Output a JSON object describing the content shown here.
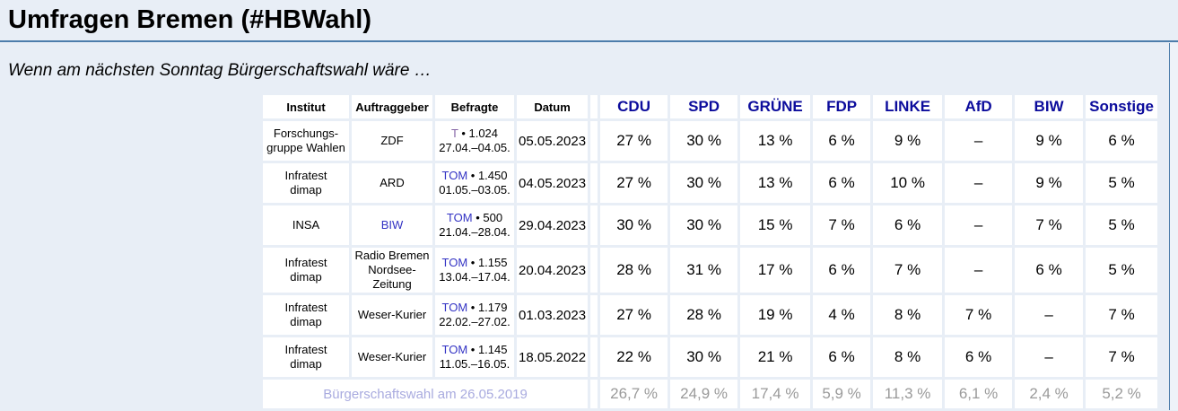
{
  "page": {
    "title": "Umfragen Bremen (#HBWahl)",
    "subtitle": "Wenn am nächsten Sonntag Bürgerschaftswahl wäre …"
  },
  "colors": {
    "page_bg": "#e8eef6",
    "rule_blue": "#4d7dab",
    "party_header": "#0c0c9c",
    "link_blue": "#3333c4",
    "link_visited": "#8565a5",
    "footer_link": "#a9abdf",
    "footer_value": "#9a9a9a",
    "cell_bg": "#ffffff"
  },
  "table": {
    "meta_headers": [
      "Institut",
      "Auftraggeber",
      "Befragte",
      "Datum"
    ],
    "party_headers": [
      "CDU",
      "SPD",
      "GRÜNE",
      "FDP",
      "LINKE",
      "AfD",
      "BIW",
      "Sonstige"
    ],
    "rows": [
      {
        "institut": [
          "Forschungs-",
          "gruppe Wahlen"
        ],
        "auftraggeber": [
          "ZDF"
        ],
        "befragte_link": "T",
        "befragte_tail": "• 1.024",
        "zeitraum": "27.04.–04.05.",
        "datum": "05.05.2023",
        "values": [
          "27 %",
          "30 %",
          "13 %",
          "6 %",
          "9 %",
          "–",
          "9 %",
          "6 %"
        ]
      },
      {
        "institut": [
          "Infratest",
          "dimap"
        ],
        "auftraggeber": [
          "ARD"
        ],
        "befragte_link": "TOM",
        "befragte_tail": "• 1.450",
        "zeitraum": "01.05.–03.05.",
        "datum": "04.05.2023",
        "values": [
          "27 %",
          "30 %",
          "13 %",
          "6 %",
          "10 %",
          "–",
          "9 %",
          "5 %"
        ]
      },
      {
        "institut": [
          "INSA"
        ],
        "auftraggeber": [
          "BIW"
        ],
        "befragte_link": "TOM",
        "befragte_tail": "• 500",
        "zeitraum": "21.04.–28.04.",
        "datum": "29.04.2023",
        "values": [
          "30 %",
          "30 %",
          "15 %",
          "7 %",
          "6 %",
          "–",
          "7 %",
          "5 %"
        ]
      },
      {
        "institut": [
          "Infratest",
          "dimap"
        ],
        "auftraggeber": [
          "Radio Bremen",
          "Nordsee-Zeitung"
        ],
        "befragte_link": "TOM",
        "befragte_tail": "• 1.155",
        "zeitraum": "13.04.–17.04.",
        "datum": "20.04.2023",
        "values": [
          "28 %",
          "31 %",
          "17 %",
          "6 %",
          "7 %",
          "–",
          "6 %",
          "5 %"
        ]
      },
      {
        "institut": [
          "Infratest",
          "dimap"
        ],
        "auftraggeber": [
          "Weser-Kurier"
        ],
        "befragte_link": "TOM",
        "befragte_tail": "• 1.179",
        "zeitraum": "22.02.–27.02.",
        "datum": "01.03.2023",
        "values": [
          "27 %",
          "28 %",
          "19 %",
          "4 %",
          "8 %",
          "7 %",
          "–",
          "7 %"
        ]
      },
      {
        "institut": [
          "Infratest",
          "dimap"
        ],
        "auftraggeber": [
          "Weser-Kurier"
        ],
        "befragte_link": "TOM",
        "befragte_tail": "• 1.145",
        "zeitraum": "11.05.–16.05.",
        "datum": "18.05.2022",
        "values": [
          "22 %",
          "30 %",
          "21 %",
          "6 %",
          "8 %",
          "6 %",
          "–",
          "7 %"
        ]
      }
    ],
    "footer": {
      "label": "Bürgerschaftswahl am 26.05.2019",
      "values": [
        "26,7 %",
        "24,9 %",
        "17,4 %",
        "5,9 %",
        "11,3 %",
        "6,1 %",
        "2,4 %",
        "5,2 %"
      ]
    }
  }
}
